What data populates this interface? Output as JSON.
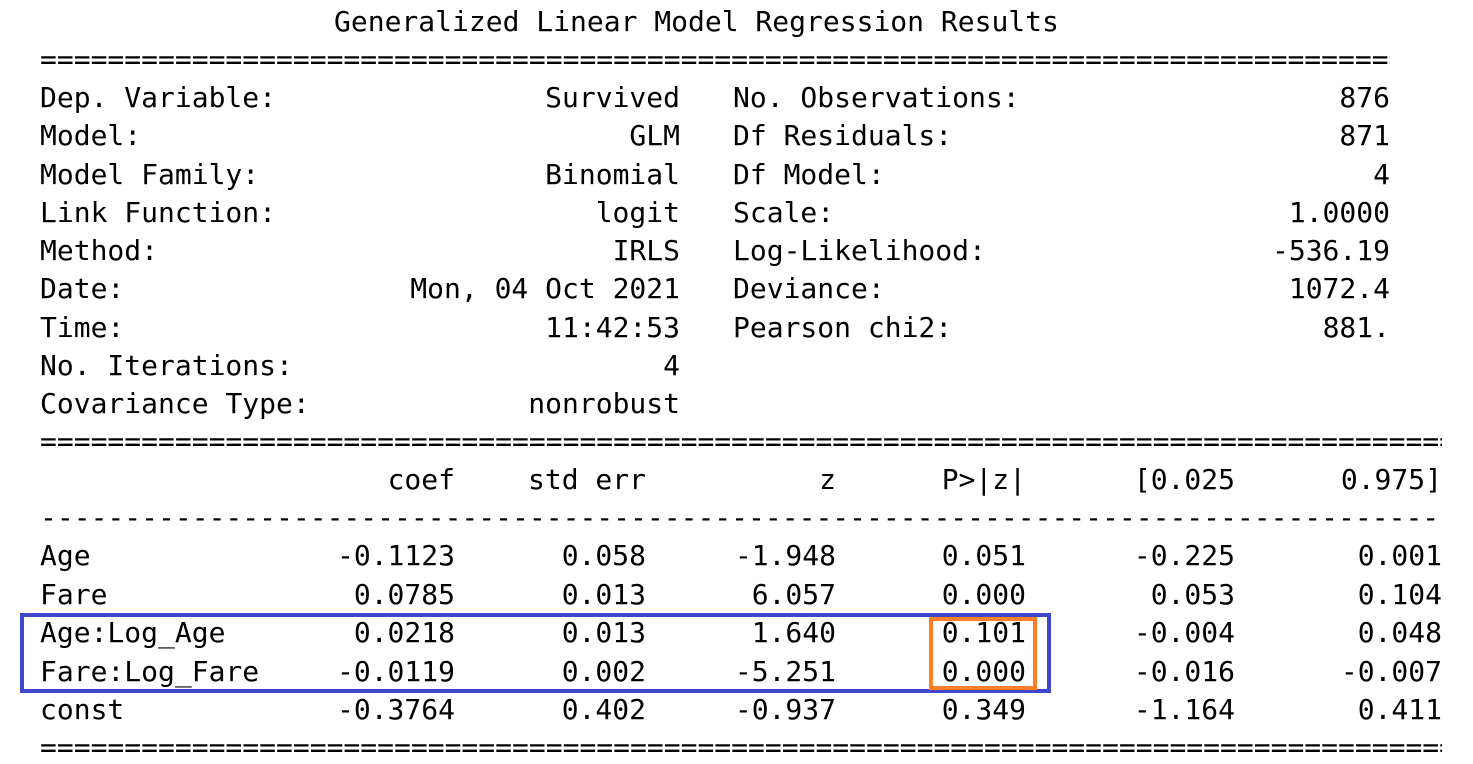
{
  "title": "Generalized Linear Model Regression Results",
  "separators": {
    "double": "=====================================================================================================",
    "single": "-----------------------------------------------------------------------------------------------------"
  },
  "info_left": [
    {
      "label": "Dep. Variable:",
      "value": "Survived"
    },
    {
      "label": "Model:",
      "value": "GLM"
    },
    {
      "label": "Model Family:",
      "value": "Binomial"
    },
    {
      "label": "Link Function:",
      "value": "logit"
    },
    {
      "label": "Method:",
      "value": "IRLS"
    },
    {
      "label": "Date:",
      "value": "Mon, 04 Oct 2021"
    },
    {
      "label": "Time:",
      "value": "11:42:53"
    },
    {
      "label": "No. Iterations:",
      "value": "4"
    },
    {
      "label": "Covariance Type:",
      "value": "nonrobust"
    }
  ],
  "info_right": [
    {
      "label": "No. Observations:",
      "value": "876"
    },
    {
      "label": "Df Residuals:",
      "value": "871"
    },
    {
      "label": "Df Model:",
      "value": "4"
    },
    {
      "label": "Scale:",
      "value": "1.0000"
    },
    {
      "label": "Log-Likelihood:",
      "value": "-536.19"
    },
    {
      "label": "Deviance:",
      "value": "1072.4"
    },
    {
      "label": "Pearson chi2:",
      "value": "881."
    }
  ],
  "coef_table": {
    "columns": [
      "coef",
      "std err",
      "z",
      "P>|z|",
      "[0.025",
      "0.975]"
    ],
    "rows": [
      {
        "name": "Age",
        "cells": [
          "-0.1123",
          "0.058",
          "-1.948",
          "0.051",
          "-0.225",
          "0.001"
        ]
      },
      {
        "name": "Fare",
        "cells": [
          "0.0785",
          "0.013",
          "6.057",
          "0.000",
          "0.053",
          "0.104"
        ]
      },
      {
        "name": "Age:Log_Age",
        "cells": [
          "0.0218",
          "0.013",
          "1.640",
          "0.101",
          "-0.004",
          "0.048"
        ]
      },
      {
        "name": "Fare:Log_Fare",
        "cells": [
          "-0.0119",
          "0.002",
          "-5.251",
          "0.000",
          "-0.016",
          "-0.007"
        ]
      },
      {
        "name": "const",
        "cells": [
          "-0.3764",
          "0.402",
          "-0.937",
          "0.349",
          "-1.164",
          "0.411"
        ]
      }
    ]
  },
  "highlights": {
    "rows_box_color": "#3f48cc",
    "pvalue_box_color": "#ff7f27"
  }
}
